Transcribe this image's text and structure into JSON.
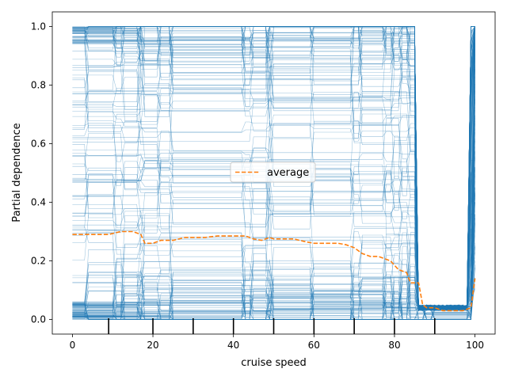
{
  "chart_data": {
    "type": "line",
    "title": "",
    "xlabel": "cruise speed",
    "ylabel": "Partial dependence",
    "xlim": [
      -5,
      105
    ],
    "ylim": [
      -0.05,
      1.05
    ],
    "xticks": [
      0,
      20,
      40,
      60,
      80,
      100
    ],
    "yticks": [
      0.0,
      0.2,
      0.4,
      0.6,
      0.8,
      1.0
    ],
    "xtick_labels": [
      "0",
      "20",
      "40",
      "60",
      "80",
      "100"
    ],
    "ytick_labels": [
      "0.0",
      "0.2",
      "0.4",
      "0.6",
      "0.8",
      "1.0"
    ],
    "grid": false,
    "legend": {
      "position": "center",
      "entries": [
        "average"
      ]
    },
    "colors": {
      "ice": "#1f77b4",
      "average": "#ff7f0e"
    },
    "x": [
      0,
      4,
      6,
      9,
      12,
      15,
      17,
      18,
      20,
      22,
      25,
      28,
      30,
      33,
      36,
      40,
      43,
      45,
      47,
      49,
      50,
      52,
      55,
      58,
      60,
      63,
      66,
      68,
      70,
      72,
      74,
      76,
      79,
      81,
      83,
      84,
      86,
      87,
      88,
      90,
      92,
      95,
      97,
      99,
      100
    ],
    "series": [
      {
        "name": "average",
        "style": "dashed",
        "values": [
          0.29,
          0.29,
          0.29,
          0.29,
          0.3,
          0.3,
          0.29,
          0.26,
          0.26,
          0.27,
          0.27,
          0.28,
          0.28,
          0.28,
          0.285,
          0.285,
          0.285,
          0.275,
          0.27,
          0.28,
          0.275,
          0.275,
          0.275,
          0.265,
          0.26,
          0.26,
          0.26,
          0.255,
          0.245,
          0.225,
          0.215,
          0.215,
          0.2,
          0.17,
          0.16,
          0.125,
          0.125,
          0.05,
          0.04,
          0.04,
          0.03,
          0.03,
          0.03,
          0.04,
          0.14
        ]
      }
    ],
    "ice_lines": {
      "count": 220,
      "color": "#1f77b4",
      "range": [
        0.0,
        1.0
      ]
    },
    "rug_x": [
      9,
      20,
      30,
      40,
      50,
      60,
      70,
      80,
      90
    ]
  }
}
